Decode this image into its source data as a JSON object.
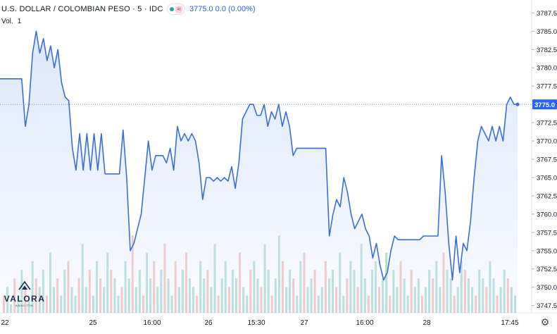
{
  "header": {
    "symbol": "U.S. DOLLAR / COLOMBIAN PESO · 5 · IDC",
    "values": "3775.0  0.0 (0.00%)",
    "pink_icon": "≈",
    "volume_label": "Vol.",
    "volume_value": "1"
  },
  "logo": {
    "brand": "VALORA",
    "sub": "ANALITIK",
    "icon": "chart-arrow-logo-icon"
  },
  "settings_icon": "gear-icon",
  "colors": {
    "line": "#3a6fd8",
    "area": "#dde7fb",
    "up_volume": "#9fd4cd",
    "down_volume": "#f4b3ae",
    "price_badge": "#2962ff"
  },
  "chart_data": {
    "type": "line",
    "ylim": [
      3746.5,
      3788.5
    ],
    "y_ticks": [
      "3787.5",
      "3785.0",
      "3782.5",
      "3780.0",
      "3777.5",
      "3775.0",
      "3772.5",
      "3770.0",
      "3767.5",
      "3765.0",
      "3762.5",
      "3760.0",
      "3757.5",
      "3755.0",
      "3752.5",
      "3750.0",
      "3747.5"
    ],
    "x_ticks": [
      "22",
      "25",
      "16:00",
      "26",
      "15:30",
      "27",
      "16:00",
      "28",
      "17:45"
    ],
    "last_price": "3775.0",
    "series": [
      {
        "values": [
          3778.5,
          3778.5,
          3778.5,
          3778.5,
          3778.5,
          3778.5,
          3778.5,
          3772.0,
          3775.0,
          3782.0,
          3785.0,
          3782.0,
          3784.0,
          3781.0,
          3783.0,
          3780.0,
          3782.5,
          3778.0,
          3776.0,
          3775.5,
          3769.0,
          3766.0,
          3771.0,
          3766.0,
          3771.0,
          3766.0,
          3771.0,
          3766.0,
          3771.0,
          3765.5,
          3765.5,
          3765.5,
          3765.5,
          3765.5,
          3771.5,
          3765.0,
          3755.0,
          3756.0,
          3758.0,
          3760.0,
          3765.0,
          3770.0,
          3766.0,
          3768.0,
          3768.0,
          3768.0,
          3767.0,
          3769.0,
          3766.0,
          3772.0,
          3770.0,
          3771.0,
          3770.0,
          3771.0,
          3770.0,
          3767.0,
          3762.0,
          3765.0,
          3765.0,
          3764.5,
          3765.0,
          3764.5,
          3765.0,
          3764.5,
          3766.5,
          3763.5,
          3767.0,
          3773.0,
          3774.0,
          3775.0,
          3775.0,
          3773.5,
          3773.5,
          3775.0,
          3772.0,
          3774.0,
          3773.0,
          3775.0,
          3772.0,
          3774.0,
          3772.0,
          3768.0,
          3769.0,
          3769.0,
          3769.0,
          3769.0,
          3769.0,
          3769.0,
          3769.0,
          3769.0,
          3769.0,
          3757.0,
          3760.0,
          3762.0,
          3761.0,
          3765.0,
          3763.0,
          3760.0,
          3758.0,
          3759.0,
          3760.0,
          3758.0,
          3757.0,
          3754.0,
          3756.0,
          3753.0,
          3751.0,
          3752.0,
          3755.0,
          3757.0,
          3756.5,
          3756.5,
          3756.5,
          3756.5,
          3756.5,
          3756.5,
          3756.5,
          3757.0,
          3757.0,
          3757.0,
          3757.0,
          3757.0,
          3768.0,
          3763.0,
          3756.0,
          3751.0,
          3757.0,
          3752.0,
          3756.0,
          3755.0,
          3759.0,
          3765.0,
          3770.0,
          3772.0,
          3771.0,
          3770.0,
          3772.0,
          3770.0,
          3772.0,
          3770.0,
          3775.0,
          3776.0,
          3775.0,
          3775.0
        ]
      }
    ],
    "volume": [
      2,
      3,
      1,
      4,
      2,
      5,
      3,
      2,
      6,
      4,
      3,
      5,
      2,
      7,
      3,
      4,
      2,
      5,
      6,
      3,
      2,
      4,
      8,
      3,
      5,
      2,
      6,
      4,
      3,
      7,
      5,
      4,
      2,
      3,
      6,
      4,
      9,
      3,
      5,
      2,
      7,
      4,
      6,
      3,
      5,
      8,
      4,
      2,
      6,
      3,
      5,
      7,
      4,
      3,
      2,
      6,
      4,
      5,
      3,
      8,
      2,
      4,
      6,
      3,
      5,
      4,
      7,
      3,
      2,
      5,
      6,
      4,
      3,
      8,
      5,
      2,
      4,
      9,
      6,
      3,
      5,
      4,
      2,
      6,
      7,
      3,
      4,
      5,
      2,
      3,
      6,
      4,
      5,
      3,
      7,
      2,
      4,
      6,
      5,
      3,
      8,
      4,
      2,
      5,
      6,
      3,
      4,
      7,
      2,
      5,
      3,
      6,
      4,
      2,
      5,
      3,
      4,
      2,
      3,
      5,
      4,
      6,
      3,
      7,
      5,
      4,
      2,
      3,
      6,
      5,
      4,
      3,
      2,
      5,
      4,
      3,
      6,
      4,
      2,
      3,
      5,
      4,
      3,
      2
    ]
  }
}
